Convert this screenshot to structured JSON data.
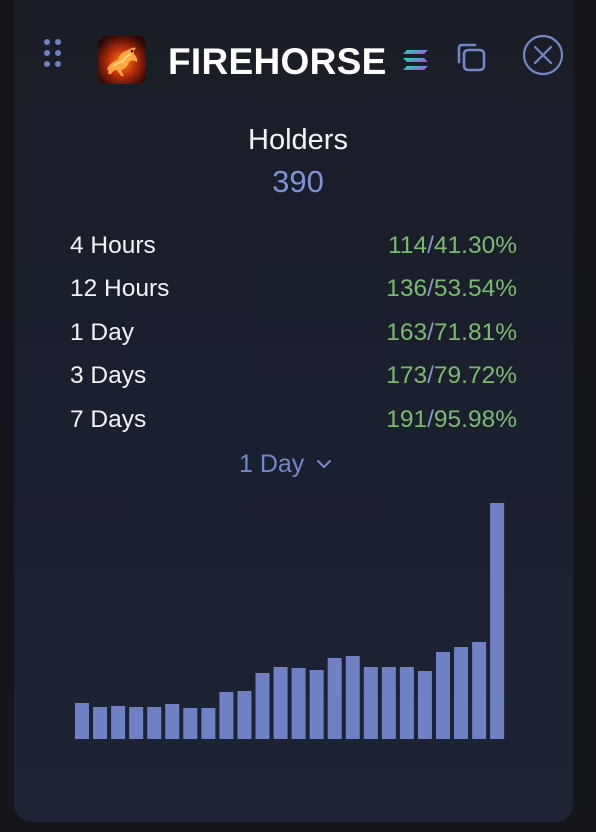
{
  "header": {
    "token_name": "FIREHORSE",
    "icons": {
      "drag": "drag-handle-icon",
      "logo": "firehorse-token-logo",
      "chain": "solana-icon",
      "copy": "copy-icon",
      "close": "close-icon"
    }
  },
  "holders": {
    "title": "Holders",
    "count": "390"
  },
  "stats": [
    {
      "label": "4 Hours",
      "count": "114",
      "percent": "41.30%"
    },
    {
      "label": "12 Hours",
      "count": "136",
      "percent": "53.54%"
    },
    {
      "label": "1 Day",
      "count": "163",
      "percent": "71.81%"
    },
    {
      "label": "3 Days",
      "count": "173",
      "percent": "79.72%"
    },
    {
      "label": "7 Days",
      "count": "191",
      "percent": "95.98%"
    }
  ],
  "period_select": {
    "selected": "1 Day"
  },
  "colors": {
    "accent": "#7f92d6",
    "bar": "#6f80c4",
    "positive": "#78bb6f",
    "text": "#f2f3f7",
    "background": "#1b2030"
  },
  "chart_data": {
    "type": "bar",
    "values": [
      36,
      32,
      33,
      32,
      32,
      35,
      31,
      31,
      47,
      48,
      66,
      72,
      71,
      69,
      81,
      83,
      72,
      72,
      72,
      68,
      87,
      92,
      97,
      236
    ],
    "ylim": [
      0,
      236
    ],
    "grid": false,
    "title": "",
    "xlabel": "",
    "ylabel": ""
  }
}
